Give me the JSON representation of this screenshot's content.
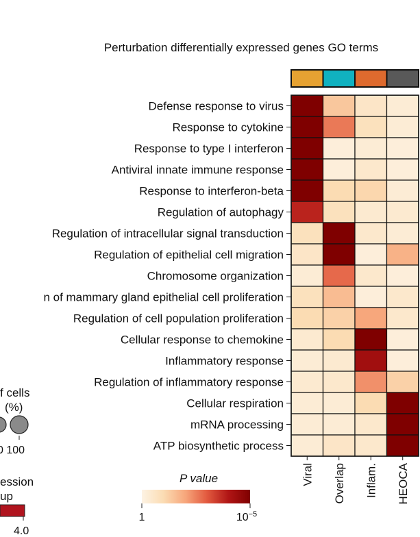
{
  "chart_data": {
    "type": "heatmap",
    "title": "Perturbation differentially expressed genes GO terms",
    "columns": [
      "Viral",
      "Overlap",
      "Inflam.",
      "HEOCA"
    ],
    "column_colors": [
      "#e6a232",
      "#10b1c0",
      "#de6a2e",
      "#595959"
    ],
    "rows": [
      "Defense response to virus",
      "Response to cytokine",
      "Response to type I interferon",
      "Antiviral innate immune response",
      "Response to interferon-beta",
      "Regulation of autophagy",
      "Regulation of intracellular signal transduction",
      "Regulation of epithelial cell migration",
      "Chromosome organization",
      "n of mammary gland epithelial cell proliferation",
      "Regulation of cell population proliferation",
      "Cellular response to chemokine",
      "Inflammatory response",
      "Regulation of inflammatory response",
      "Cellular respiration",
      "mRNA processing",
      "ATP biosynthetic process"
    ],
    "values": [
      [
        5.0,
        1.4,
        0.6,
        0.3
      ],
      [
        5.0,
        2.6,
        0.8,
        0.3
      ],
      [
        5.0,
        0.2,
        0.3,
        0.2
      ],
      [
        5.0,
        0.2,
        0.5,
        0.2
      ],
      [
        5.0,
        1.0,
        1.1,
        0.3
      ],
      [
        3.8,
        0.8,
        0.4,
        0.4
      ],
      [
        0.8,
        5.0,
        0.5,
        0.3
      ],
      [
        0.6,
        5.0,
        0.2,
        1.8
      ],
      [
        0.3,
        2.8,
        0.5,
        0.2
      ],
      [
        0.8,
        1.6,
        0.2,
        0.5
      ],
      [
        1.0,
        1.2,
        2.0,
        0.5
      ],
      [
        0.4,
        1.0,
        5.0,
        0.2
      ],
      [
        0.3,
        0.4,
        4.3,
        0.2
      ],
      [
        0.4,
        0.5,
        2.3,
        1.2
      ],
      [
        0.3,
        0.3,
        1.0,
        5.0
      ],
      [
        0.3,
        0.3,
        0.5,
        5.0
      ],
      [
        0.3,
        0.6,
        0.5,
        5.0
      ]
    ],
    "colorbar": {
      "title": "P value",
      "min_label": "1",
      "max_label_base": "10",
      "max_label_exp": "−5",
      "colors": [
        "#fdf3e4",
        "#fbdcb3",
        "#f7a77c",
        "#e25a3f",
        "#b01515",
        "#7f0000"
      ]
    }
  },
  "legend_cells": {
    "title_line1": "f cells",
    "title_line2": "(%)",
    "tick_label": "0 100"
  },
  "legend_expression": {
    "title_line1": "ession",
    "title_line2": "up",
    "tick_label": "4.0",
    "color": "#b0141e"
  }
}
